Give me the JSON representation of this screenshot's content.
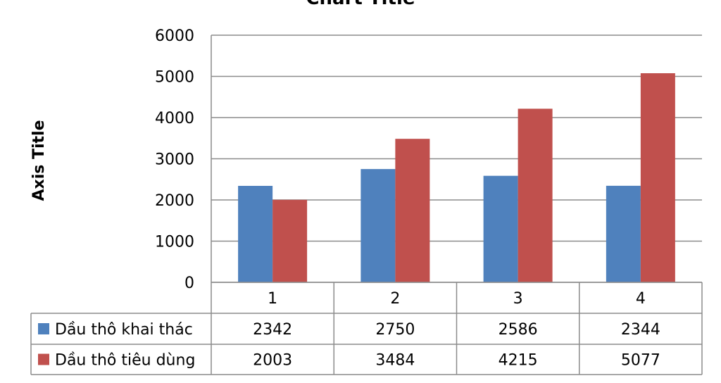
{
  "chart_data": {
    "type": "bar",
    "title": "Chart Title",
    "ylabel": "Axis Title",
    "ylim": [
      0,
      6000
    ],
    "yticks": [
      0,
      1000,
      2000,
      3000,
      4000,
      5000,
      6000
    ],
    "categories": [
      "1",
      "2",
      "3",
      "4"
    ],
    "grid": true,
    "legend": "data-table",
    "series": [
      {
        "name": "Dầu thô khai thác",
        "color": "#4f81bd",
        "values": [
          2342,
          2750,
          2586,
          2344
        ]
      },
      {
        "name": "Dầu thô tiêu dùng",
        "color": "#c0504d",
        "values": [
          2003,
          3484,
          4215,
          5077
        ]
      }
    ]
  }
}
